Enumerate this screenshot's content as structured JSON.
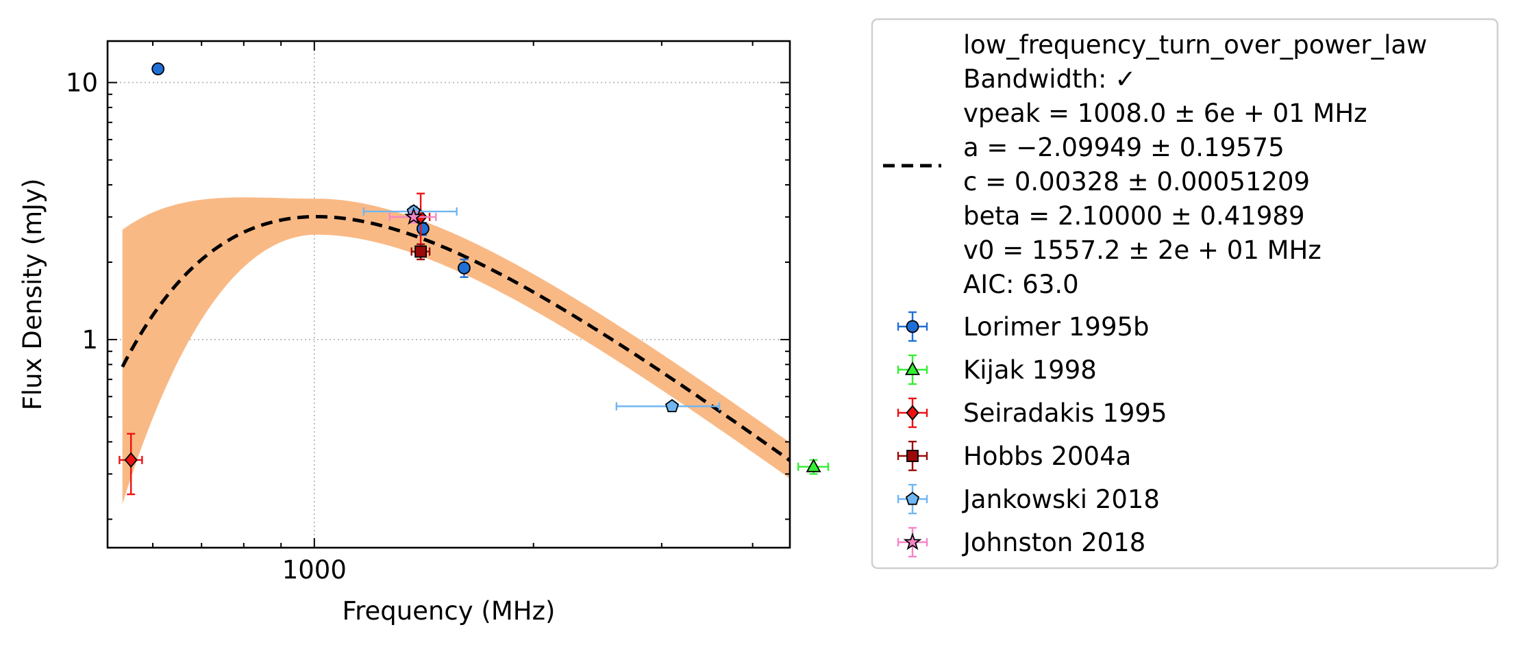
{
  "chart_data": {
    "type": "scatter",
    "xlabel": "Frequency (MHz)",
    "ylabel": "Flux Density (mJy)",
    "xscale": "log",
    "yscale": "log",
    "xlim": [
      520,
      4500
    ],
    "ylim": [
      0.155,
      14.5
    ],
    "x_ticks": [
      {
        "value": 1000,
        "label": "1000"
      }
    ],
    "y_ticks": [
      {
        "value": 1,
        "label": "1"
      },
      {
        "value": 10,
        "label": "10"
      }
    ],
    "grid": true,
    "legend_position": "outside-right",
    "fit": {
      "name": "low_frequency_turn_over_power_law",
      "style": "dashed",
      "color": "#000000",
      "band_color": "#f9b985",
      "model": {
        "vpeak": 1008.0,
        "a": -2.09949,
        "c": 0.00328,
        "beta": 2.1,
        "v0": 1557.2
      },
      "legend_lines": [
        "low_frequency_turn_over_power_law",
        "Bandwidth: ✓",
        "vpeak = 1008.0 ± 6e + 01 MHz",
        "a = −2.09949 ± 0.19575",
        "c = 0.00328 ± 0.00051209",
        "beta = 2.10000 ± 0.41989",
        "v0 = 1557.2 ± 2e + 01 MHz",
        "AIC: 63.0"
      ]
    },
    "series": [
      {
        "name": "Lorimer 1995b",
        "marker": "circle",
        "color": "#1f6fd6",
        "ecolor": "#1f6fd6",
        "points": [
          {
            "x": 610,
            "y": 11.3
          },
          {
            "x": 1410,
            "y": 2.7,
            "yerr": 0.15
          },
          {
            "x": 1606,
            "y": 1.9,
            "yerr": 0.15
          }
        ]
      },
      {
        "name": "Kijak 1998",
        "marker": "triangle",
        "color": "#33ee33",
        "ecolor": "#33ee33",
        "points": [
          {
            "x": 4850,
            "y": 0.32,
            "xerr": 230,
            "yerr": 0.02
          }
        ]
      },
      {
        "name": "Seiradakis 1995",
        "marker": "diamond",
        "color": "#ee1111",
        "ecolor": "#ee1111",
        "points": [
          {
            "x": 560,
            "y": 0.34,
            "xerr": 20,
            "yerr": 0.09
          },
          {
            "x": 1400,
            "y": 3.0,
            "xerr": 40,
            "yerr": 0.7
          }
        ]
      },
      {
        "name": "Hobbs 2004a",
        "marker": "square",
        "color": "#9b0a0a",
        "ecolor": "#9b0a0a",
        "points": [
          {
            "x": 1400,
            "y": 2.2,
            "xerr": 40,
            "yerr": 0.15
          }
        ]
      },
      {
        "name": "Jankowski 2018",
        "marker": "pentagon",
        "color": "#6fb6f2",
        "ecolor": "#6fb6f2",
        "points": [
          {
            "x": 1369,
            "y": 3.15,
            "xerr": 200,
            "yerr": 0.15
          },
          {
            "x": 3100,
            "y": 0.55,
            "xerr": 500,
            "yerr": 0.02
          }
        ]
      },
      {
        "name": "Johnston 2018",
        "marker": "star",
        "color": "#f584c5",
        "ecolor": "#f584c5",
        "points": [
          {
            "x": 1369,
            "y": 3.0,
            "xerr": 100,
            "yerr": 0.15
          }
        ]
      }
    ]
  }
}
